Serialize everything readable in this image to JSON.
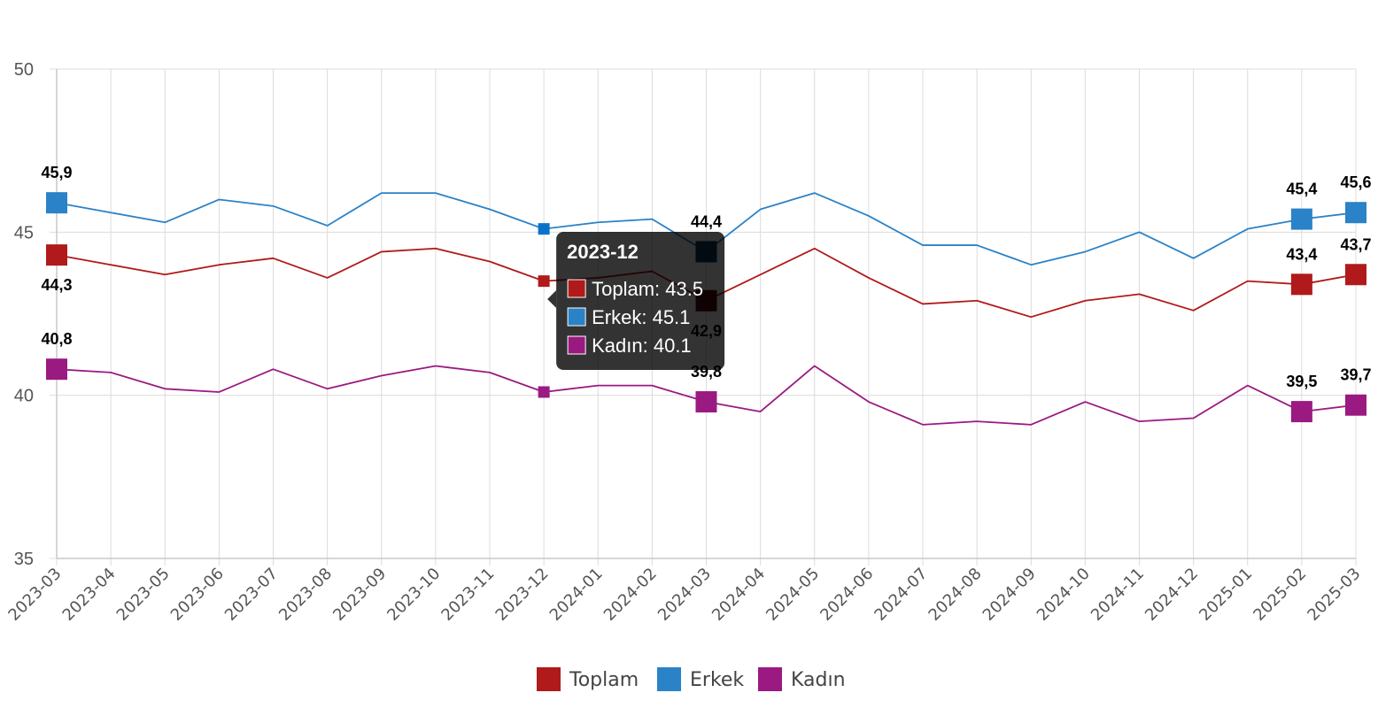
{
  "chart_data": {
    "type": "line",
    "title": "",
    "xlabel": "",
    "ylabel": "",
    "ylim": [
      35,
      50
    ],
    "y_ticks": [
      "35",
      "40",
      "45",
      "50"
    ],
    "categories": [
      "2023-03",
      "2023-04",
      "2023-05",
      "2023-06",
      "2023-07",
      "2023-08",
      "2023-09",
      "2023-10",
      "2023-11",
      "2023-12",
      "2024-01",
      "2024-02",
      "2024-03",
      "2024-04",
      "2024-05",
      "2024-06",
      "2024-07",
      "2024-08",
      "2024-09",
      "2024-10",
      "2024-11",
      "2024-12",
      "2025-01",
      "2025-02",
      "2025-03"
    ],
    "series": [
      {
        "name": "Toplam",
        "color": "#b01a1a",
        "values": [
          44.3,
          44.0,
          43.7,
          44.0,
          44.2,
          43.6,
          44.4,
          44.5,
          44.1,
          43.5,
          43.6,
          43.8,
          42.9,
          43.7,
          44.5,
          43.6,
          42.8,
          42.9,
          42.4,
          42.9,
          43.1,
          42.6,
          43.5,
          43.4,
          43.7
        ],
        "labels": [
          {
            "index": 0,
            "text": "44,3",
            "position": "below"
          },
          {
            "index": 12,
            "text": "42,9",
            "position": "below"
          },
          {
            "index": 23,
            "text": "43,4",
            "position": "above"
          },
          {
            "index": 24,
            "text": "43,7",
            "position": "above"
          }
        ]
      },
      {
        "name": "Erkek",
        "color": "#2a82c7",
        "values": [
          45.9,
          45.6,
          45.3,
          46.0,
          45.8,
          45.2,
          46.2,
          46.2,
          45.7,
          45.1,
          45.3,
          45.4,
          44.4,
          45.7,
          46.2,
          45.5,
          44.6,
          44.6,
          44.0,
          44.4,
          45.0,
          44.2,
          45.1,
          45.4,
          45.6
        ],
        "labels": [
          {
            "index": 0,
            "text": "45,9",
            "position": "above"
          },
          {
            "index": 12,
            "text": "44,4",
            "position": "above"
          },
          {
            "index": 23,
            "text": "45,4",
            "position": "above"
          },
          {
            "index": 24,
            "text": "45,6",
            "position": "above"
          }
        ]
      },
      {
        "name": "Kadın",
        "color": "#9a1a82",
        "values": [
          40.8,
          40.7,
          40.2,
          40.1,
          40.8,
          40.2,
          40.6,
          40.9,
          40.7,
          40.1,
          40.3,
          40.3,
          39.8,
          39.5,
          40.9,
          39.8,
          39.1,
          39.2,
          39.1,
          39.8,
          39.2,
          39.3,
          40.3,
          39.5,
          39.7
        ],
        "labels": [
          {
            "index": 0,
            "text": "40,8",
            "position": "above"
          },
          {
            "index": 12,
            "text": "39,8",
            "position": "above"
          },
          {
            "index": 23,
            "text": "39,5",
            "position": "above"
          },
          {
            "index": 24,
            "text": "39,7",
            "position": "above"
          }
        ]
      }
    ],
    "big_marker_indices": [
      0,
      12,
      23,
      24
    ],
    "legend": {
      "placement": "bottom-center",
      "items": [
        "Toplam",
        "Erkek",
        "Kadın"
      ]
    },
    "tooltip": {
      "category_index": 9,
      "title": "2023-12",
      "rows": [
        {
          "series": "Toplam",
          "text": "Toplam: 43.5",
          "color": "#b01a1a"
        },
        {
          "series": "Erkek",
          "text": "Erkek: 45.1",
          "color": "#2a82c7"
        },
        {
          "series": "Kadın",
          "text": "Kadın: 40.1",
          "color": "#9a1a82"
        }
      ]
    }
  }
}
